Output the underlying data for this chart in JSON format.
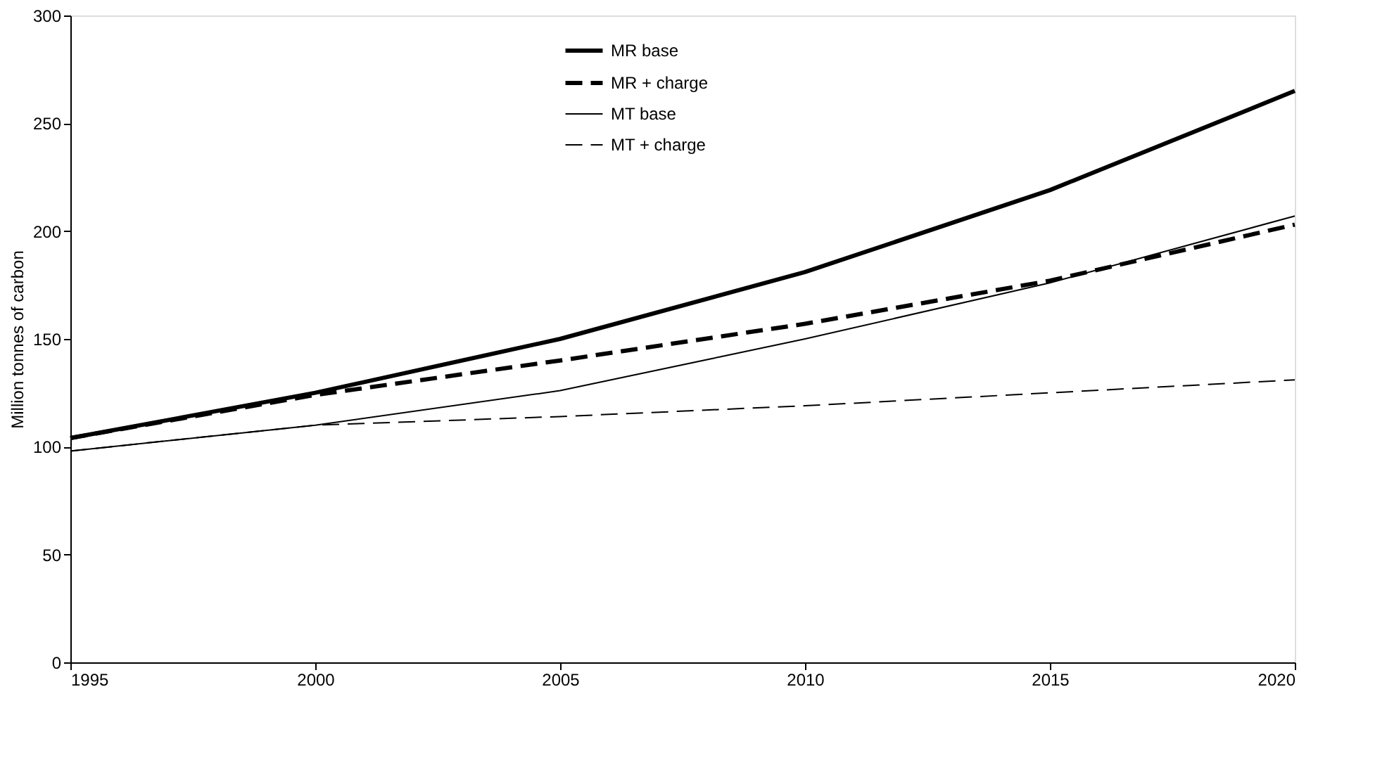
{
  "chart_data": {
    "type": "line",
    "ylabel": "Million tonnes of carbon",
    "x": [
      1995,
      2000,
      2005,
      2010,
      2015,
      2020
    ],
    "xlim": [
      1995,
      2020
    ],
    "xticks": [
      1995,
      2000,
      2005,
      2010,
      2015,
      2020
    ],
    "ylim": [
      0,
      300
    ],
    "yticks": [
      0,
      50,
      100,
      150,
      200,
      250,
      300
    ],
    "grid": false,
    "legend": "top",
    "marker": "none",
    "series": [
      {
        "name": "MR base",
        "color": "#000000",
        "line_style": "solid",
        "values": [
          104,
          125,
          150,
          181,
          219,
          265
        ]
      },
      {
        "name": "MR + charge",
        "color": "#000000",
        "line_style": "dashed",
        "values": [
          104,
          124,
          140,
          157,
          177,
          203
        ]
      },
      {
        "name": "MT base",
        "color": "#000000",
        "line_style": "solid",
        "values": [
          98,
          110,
          126,
          150,
          176,
          207
        ]
      },
      {
        "name": "MT + charge",
        "color": "#000000",
        "line_style": "dashed",
        "values": [
          98,
          110,
          114,
          119,
          125,
          131
        ]
      }
    ]
  }
}
